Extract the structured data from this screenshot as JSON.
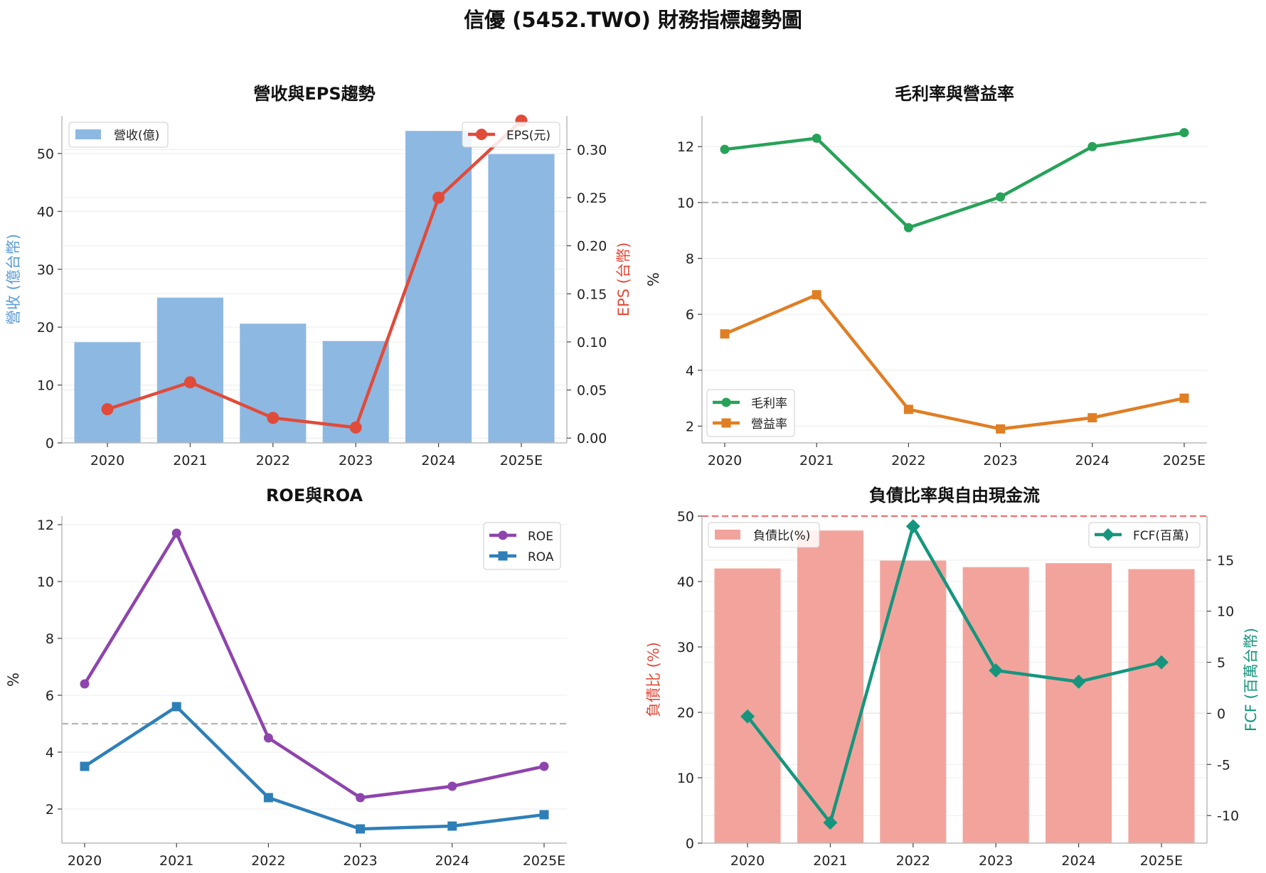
{
  "suptitle": "信優 (5452.TWO) 財務指標趨勢圖",
  "colors": {
    "revenue_bar": "#8db8e2",
    "eps_line": "#e04b3a",
    "gross_margin": "#27a259",
    "operating_margin": "#e07e24",
    "roe": "#8e44ad",
    "roa": "#2e7fb8",
    "debt_bar": "#f2a49c",
    "fcf_line": "#16957e",
    "reference_line": "#b5b5b5",
    "debt_threshold": "#f07070",
    "revenue_axis_label": "#5b9bd5",
    "eps_axis_label": "#e04b3a",
    "debt_axis_label": "#e04b3a",
    "fcf_axis_label": "#16957e"
  },
  "chart_data": [
    {
      "id": "revenue_eps",
      "type": "bar+line",
      "title": "營收與EPS趨勢",
      "categories": [
        "2020",
        "2021",
        "2022",
        "2023",
        "2024",
        "2025E"
      ],
      "series": [
        {
          "name": "營收(億)",
          "type": "bar",
          "axis": "left",
          "values": [
            17.4,
            25.1,
            20.6,
            17.6,
            53.9,
            49.9
          ]
        },
        {
          "name": "EPS(元)",
          "type": "line",
          "axis": "right",
          "values": [
            0.03,
            0.058,
            0.021,
            0.011,
            0.25,
            0.33
          ]
        }
      ],
      "ylabel": "營收 (億台幣)",
      "y2label": "EPS (台幣)",
      "ylim": [
        0,
        56.5
      ],
      "y2lim": [
        -0.005,
        0.335
      ],
      "yticks": [
        0,
        10,
        20,
        30,
        40,
        50
      ],
      "y2ticks": [
        "0.00",
        "0.05",
        "0.10",
        "0.15",
        "0.20",
        "0.25",
        "0.30"
      ],
      "grid": true,
      "legend": [
        "top-left",
        "top-right"
      ]
    },
    {
      "id": "margins",
      "type": "line",
      "title": "毛利率與營益率",
      "categories": [
        "2020",
        "2021",
        "2022",
        "2023",
        "2024",
        "2025E"
      ],
      "series": [
        {
          "name": "毛利率",
          "values": [
            11.9,
            12.3,
            9.1,
            10.2,
            12.0,
            12.5
          ]
        },
        {
          "name": "營益率",
          "values": [
            5.3,
            6.7,
            2.6,
            1.9,
            2.3,
            3.0
          ]
        }
      ],
      "ylabel": "%",
      "ylim": [
        1.4,
        13.1
      ],
      "yticks": [
        2,
        4,
        6,
        8,
        10,
        12
      ],
      "reference_line": 10,
      "grid": true,
      "legend": "bottom-left"
    },
    {
      "id": "roe_roa",
      "type": "line",
      "title": "ROE與ROA",
      "categories": [
        "2020",
        "2021",
        "2022",
        "2023",
        "2024",
        "2025E"
      ],
      "series": [
        {
          "name": "ROE",
          "values": [
            6.4,
            11.7,
            4.5,
            2.4,
            2.8,
            3.5
          ]
        },
        {
          "name": "ROA",
          "values": [
            3.5,
            5.6,
            2.4,
            1.3,
            1.4,
            1.8
          ]
        }
      ],
      "ylabel": "%",
      "ylim": [
        0.8,
        12.3
      ],
      "yticks": [
        2,
        4,
        6,
        8,
        10,
        12
      ],
      "reference_line": 5,
      "grid": true,
      "legend": "top-right"
    },
    {
      "id": "debt_fcf",
      "type": "bar+line",
      "title": "負債比率與自由現金流",
      "categories": [
        "2020",
        "2021",
        "2022",
        "2023",
        "2024",
        "2025E"
      ],
      "series": [
        {
          "name": "負債比(%)",
          "type": "bar",
          "axis": "left",
          "values": [
            42.0,
            47.8,
            43.2,
            42.2,
            42.8,
            41.9
          ]
        },
        {
          "name": "FCF(百萬)",
          "type": "line",
          "axis": "right",
          "values": [
            -0.3,
            -10.7,
            18.3,
            4.2,
            3.1,
            5.0
          ]
        }
      ],
      "ylabel": "負債比 (%)",
      "y2label": "FCF (百萬台幣)",
      "ylim": [
        0,
        50
      ],
      "y2lim": [
        -12.7,
        19.3
      ],
      "yticks": [
        0,
        10,
        20,
        30,
        40,
        50
      ],
      "y2ticks": [
        -10,
        -5,
        0,
        5,
        10,
        15
      ],
      "reference_line": 50,
      "grid": true,
      "legend": [
        "top-left",
        "top-right"
      ]
    }
  ]
}
